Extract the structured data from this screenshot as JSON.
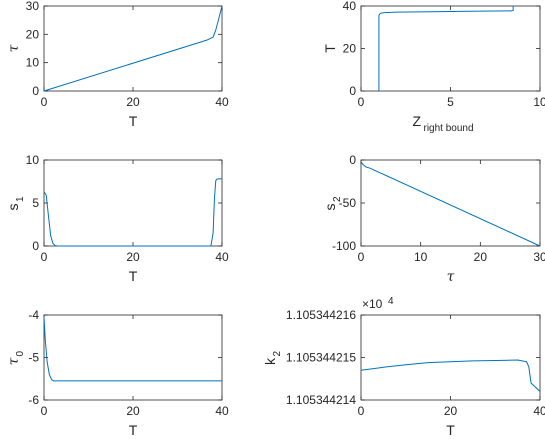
{
  "chart_data": [
    {
      "type": "line",
      "xlabel": "T",
      "ylabel": "τ",
      "xlim": [
        0,
        40
      ],
      "ylim": [
        0,
        30
      ],
      "xticks": [
        "0",
        "20",
        "40"
      ],
      "yticks": [
        "0",
        "10",
        "20",
        "30"
      ],
      "grid": false,
      "series": [
        {
          "color": "#0072bd",
          "x": [
            0,
            36.5,
            38,
            38.6,
            40
          ],
          "y": [
            0,
            17.9,
            19.0,
            21.5,
            30
          ]
        }
      ]
    },
    {
      "type": "line",
      "xlabel": "Z",
      "xlabel_sub": "right bound",
      "ylabel": "T",
      "xlim": [
        0,
        10
      ],
      "ylim": [
        0,
        40
      ],
      "xticks": [
        "0",
        "5",
        "10"
      ],
      "yticks": [
        "0",
        "20",
        "40"
      ],
      "grid": false,
      "series": [
        {
          "color": "#0072bd",
          "x": [
            1.0,
            1.0,
            1.05,
            1.1,
            1.3,
            2,
            4,
            6,
            8.4,
            8.5,
            8.5
          ],
          "y": [
            0,
            35.5,
            36.3,
            36.6,
            36.9,
            37.1,
            37.3,
            37.5,
            37.7,
            37.9,
            40
          ]
        }
      ]
    },
    {
      "type": "line",
      "xlabel": "T",
      "ylabel": "s",
      "ylabel_sub": "1",
      "xlim": [
        0,
        40
      ],
      "ylim": [
        0,
        10
      ],
      "xticks": [
        "0",
        "20",
        "40"
      ],
      "yticks": [
        "0",
        "5",
        "10"
      ],
      "grid": false,
      "series": [
        {
          "color": "#0072bd",
          "x": [
            0,
            0.5,
            1.0,
            1.5,
            2.0,
            2.5,
            3.0,
            5,
            37.5,
            38.0,
            38.3,
            38.6,
            38.9,
            40
          ],
          "y": [
            6.3,
            5.9,
            3.5,
            1.2,
            0.3,
            0.05,
            0,
            0,
            0,
            1.5,
            5.5,
            7.6,
            7.8,
            7.8
          ]
        }
      ]
    },
    {
      "type": "line",
      "xlabel": "τ",
      "ylabel": "s",
      "ylabel_sub": "2",
      "xlim": [
        0,
        30
      ],
      "ylim": [
        -100,
        0
      ],
      "xticks": [
        "0",
        "10",
        "20",
        "30"
      ],
      "yticks": [
        "-100",
        "-50",
        "0"
      ],
      "grid": false,
      "series": [
        {
          "color": "#0072bd",
          "x": [
            0,
            0.3,
            0.8,
            1.5,
            30
          ],
          "y": [
            -2,
            -5,
            -8,
            -9.5,
            -100
          ]
        }
      ]
    },
    {
      "type": "line",
      "xlabel": "T",
      "ylabel": "τ",
      "ylabel_sub": "0",
      "xlim": [
        0,
        40
      ],
      "ylim": [
        -6,
        -4
      ],
      "xticks": [
        "0",
        "20",
        "40"
      ],
      "yticks": [
        "-6",
        "-5",
        "-4"
      ],
      "grid": false,
      "series": [
        {
          "color": "#0072bd",
          "x": [
            0,
            0.3,
            0.7,
            1.2,
            1.7,
            2.2,
            3,
            40
          ],
          "y": [
            -4.05,
            -4.6,
            -5.1,
            -5.4,
            -5.52,
            -5.55,
            -5.55,
            -5.55
          ]
        }
      ]
    },
    {
      "type": "line",
      "xlabel": "T",
      "ylabel": "k",
      "ylabel_sub": "2",
      "exponent_label": "×10",
      "exponent_power": "4",
      "xlim": [
        0,
        40
      ],
      "ylim": [
        1.105344214,
        1.105344216
      ],
      "xticks": [
        "0",
        "20",
        "40"
      ],
      "yticks": [
        "1.105344214",
        "1.105344215",
        "1.105344216"
      ],
      "grid": false,
      "series": [
        {
          "color": "#0072bd",
          "x": [
            0,
            5,
            10,
            15,
            20,
            25,
            30,
            35,
            36,
            37,
            37.5,
            38,
            40
          ],
          "y": [
            1.1053442147,
            1.10534421477,
            1.10534421483,
            1.10534421488,
            1.1053442149,
            1.10534421492,
            1.10534421493,
            1.10534421494,
            1.10534421492,
            1.1053442149,
            1.10534421478,
            1.1053442144,
            1.1053442142
          ]
        }
      ]
    }
  ]
}
